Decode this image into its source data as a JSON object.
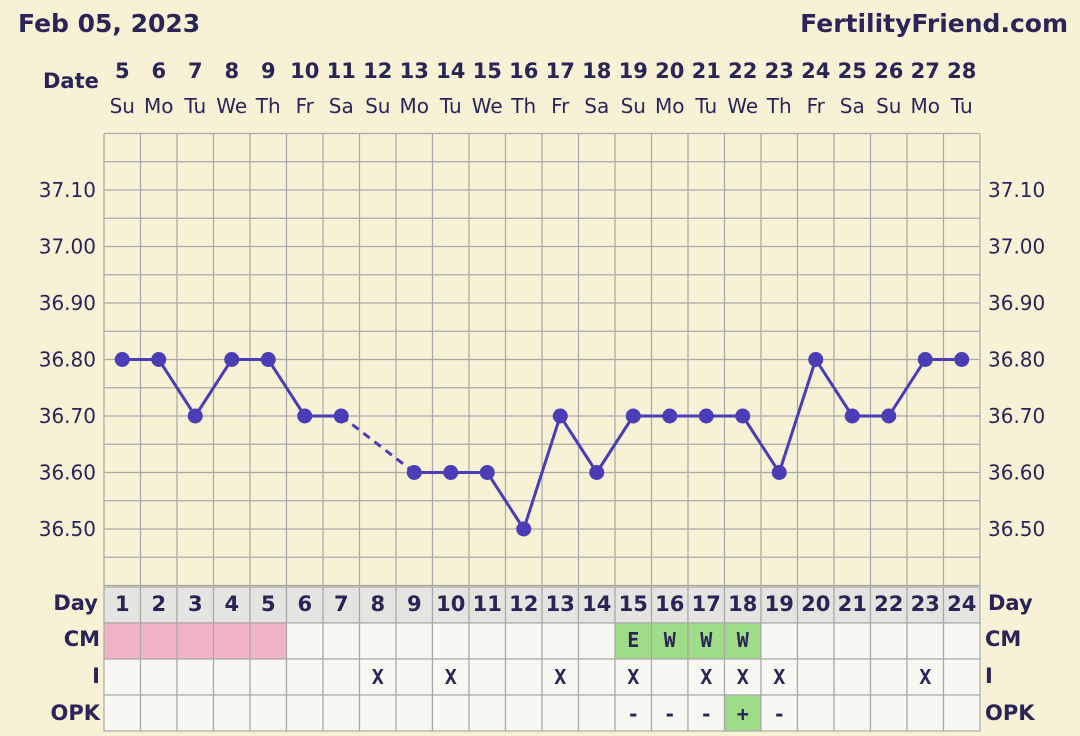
{
  "header": {
    "date": "Feb 05, 2023",
    "brand": "FertilityFriend.com"
  },
  "labels": {
    "date": "Date",
    "day": "Day",
    "cm": "CM",
    "intercourse": "I",
    "opk": "OPK"
  },
  "chart_data": {
    "type": "line",
    "dates": [
      "5",
      "6",
      "7",
      "8",
      "9",
      "10",
      "11",
      "12",
      "13",
      "14",
      "15",
      "16",
      "17",
      "18",
      "19",
      "20",
      "21",
      "22",
      "23",
      "24",
      "25",
      "26",
      "27",
      "28"
    ],
    "weekdays": [
      "Su",
      "Mo",
      "Tu",
      "We",
      "Th",
      "Fr",
      "Sa",
      "Su",
      "Mo",
      "Tu",
      "We",
      "Th",
      "Fr",
      "Sa",
      "Su",
      "Mo",
      "Tu",
      "We",
      "Th",
      "Fr",
      "Sa",
      "Su",
      "Mo",
      "Tu"
    ],
    "cycle_days": [
      "1",
      "2",
      "3",
      "4",
      "5",
      "6",
      "7",
      "8",
      "9",
      "10",
      "11",
      "12",
      "13",
      "14",
      "15",
      "16",
      "17",
      "18",
      "19",
      "20",
      "21",
      "22",
      "23",
      "24"
    ],
    "temps": [
      36.8,
      36.8,
      36.7,
      36.8,
      36.8,
      36.7,
      36.7,
      null,
      36.6,
      36.6,
      36.6,
      36.5,
      36.7,
      36.6,
      36.7,
      36.7,
      36.7,
      36.7,
      36.6,
      36.8,
      36.7,
      36.7,
      36.8,
      36.8
    ],
    "y_ticks": [
      "37.10",
      "37.00",
      "36.90",
      "36.80",
      "36.70",
      "36.60",
      "36.50"
    ],
    "ylim": [
      36.43,
      37.23
    ],
    "grid": true,
    "series_color": "#4b3db5",
    "period_days": [
      1,
      2,
      3,
      4,
      5
    ],
    "period_color": "#f1b3c6",
    "cm": {
      "15": "E",
      "16": "W",
      "17": "W",
      "18": "W"
    },
    "cm_color": "#9fdc88",
    "intercourse": {
      "8": "X",
      "10": "X",
      "13": "X",
      "15": "X",
      "17": "X",
      "18": "X",
      "19": "X",
      "23": "X"
    },
    "opk": {
      "15": "-",
      "16": "-",
      "17": "-",
      "18": "+",
      "19": "-"
    },
    "opk_positive_color": "#9fdc88"
  }
}
